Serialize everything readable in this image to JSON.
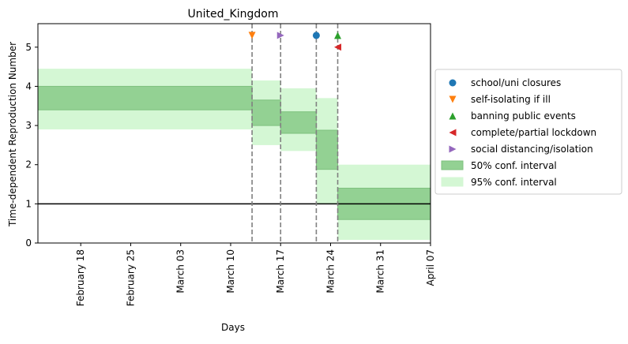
{
  "chart_data": {
    "type": "area",
    "title": "United_Kingdom",
    "xlabel": "Days",
    "ylabel": "Time-dependent Reproduction Number",
    "x_axis": {
      "type": "date",
      "range": [
        "2020-02-12",
        "2020-04-07"
      ],
      "ticks": [
        {
          "date": "2020-02-18",
          "label": "February 18"
        },
        {
          "date": "2020-02-25",
          "label": "February 25"
        },
        {
          "date": "2020-03-03",
          "label": "March 03"
        },
        {
          "date": "2020-03-10",
          "label": "March 10"
        },
        {
          "date": "2020-03-17",
          "label": "March 17"
        },
        {
          "date": "2020-03-24",
          "label": "March 24"
        },
        {
          "date": "2020-03-31",
          "label": "March 31"
        },
        {
          "date": "2020-04-07",
          "label": "April 07"
        }
      ]
    },
    "ylim": [
      0,
      5.6
    ],
    "yticks": [
      0,
      1,
      2,
      3,
      4,
      5
    ],
    "grid": false,
    "legend_position": "center-right outside",
    "reference_line": {
      "y": 1,
      "color": "#000000"
    },
    "segments": [
      {
        "start": "2020-02-12",
        "end": "2020-03-13",
        "ci50": [
          3.4,
          4.0
        ],
        "ci95": [
          2.9,
          4.45
        ]
      },
      {
        "start": "2020-03-13",
        "end": "2020-03-17",
        "ci50": [
          3.0,
          3.65
        ],
        "ci95": [
          2.5,
          4.15
        ]
      },
      {
        "start": "2020-03-17",
        "end": "2020-03-22",
        "ci50": [
          2.8,
          3.35
        ],
        "ci95": [
          2.35,
          3.95
        ]
      },
      {
        "start": "2020-03-22",
        "end": "2020-03-25",
        "ci50": [
          1.88,
          2.88
        ],
        "ci95": [
          1.0,
          3.7
        ]
      },
      {
        "start": "2020-03-25",
        "end": "2020-04-07",
        "ci50": [
          0.6,
          1.4
        ],
        "ci95": [
          0.08,
          2.0
        ]
      }
    ],
    "interventions": [
      {
        "name": "self-isolating if ill",
        "date": "2020-03-13",
        "marker": "triangle-down",
        "color": "#ff7f0e",
        "y": 5.3
      },
      {
        "name": "social distancing/isolation",
        "date": "2020-03-17",
        "marker": "triangle-right",
        "color": "#9467bd",
        "y": 5.3
      },
      {
        "name": "school/uni closures",
        "date": "2020-03-22",
        "marker": "circle",
        "color": "#1f77b4",
        "y": 5.3
      },
      {
        "name": "banning public events",
        "date": "2020-03-25",
        "marker": "triangle-up",
        "color": "#2ca02c",
        "y": 5.3
      },
      {
        "name": "complete/partial lockdown",
        "date": "2020-03-25",
        "marker": "triangle-left",
        "color": "#d62728",
        "y": 5.0
      }
    ],
    "intervention_lines": [
      "2020-03-13",
      "2020-03-17",
      "2020-03-22",
      "2020-03-25"
    ],
    "legend": [
      {
        "label": "school/uni closures",
        "marker": "circle",
        "color": "#1f77b4"
      },
      {
        "label": "self-isolating if ill",
        "marker": "triangle-down",
        "color": "#ff7f0e"
      },
      {
        "label": "banning public events",
        "marker": "triangle-up",
        "color": "#2ca02c"
      },
      {
        "label": "complete/partial lockdown",
        "marker": "triangle-left",
        "color": "#d62728"
      },
      {
        "label": "social distancing/isolation",
        "marker": "triangle-right",
        "color": "#9467bd"
      },
      {
        "label": "50% conf. interval",
        "marker": "patch",
        "color": "#93d193"
      },
      {
        "label": "95% conf. interval",
        "marker": "patch",
        "color": "#d4f7d4"
      }
    ],
    "colors": {
      "ci50_fill": "#93d193",
      "ci50_edge": "#7ec17e",
      "ci95_fill": "#d4f7d4",
      "intervention_line": "#808080",
      "axis": "#000000"
    }
  }
}
